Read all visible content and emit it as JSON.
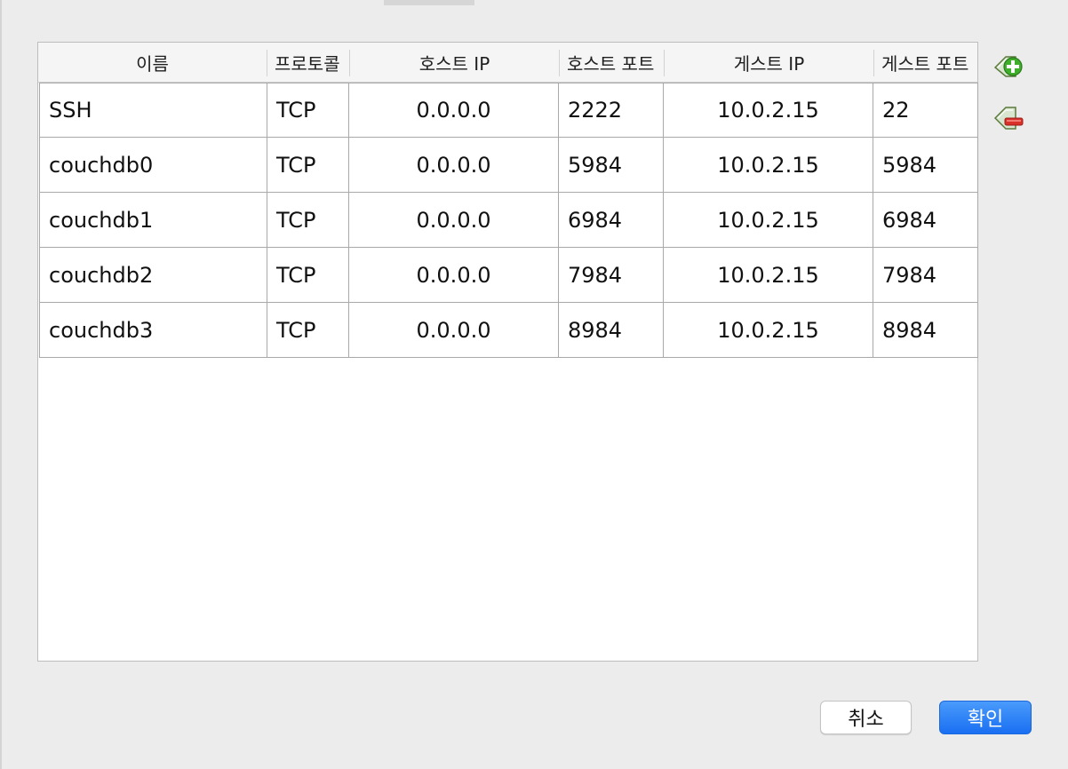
{
  "table": {
    "headers": [
      "이름",
      "프로토콜",
      "호스트 IP",
      "호스트 포트",
      "게스트 IP",
      "게스트 포트"
    ],
    "rows": [
      [
        "SSH",
        "TCP",
        "0.0.0.0",
        "2222",
        "10.0.2.15",
        "22"
      ],
      [
        "couchdb0",
        "TCP",
        "0.0.0.0",
        "5984",
        "10.0.2.15",
        "5984"
      ],
      [
        "couchdb1",
        "TCP",
        "0.0.0.0",
        "6984",
        "10.0.2.15",
        "6984"
      ],
      [
        "couchdb2",
        "TCP",
        "0.0.0.0",
        "7984",
        "10.0.2.15",
        "7984"
      ],
      [
        "couchdb3",
        "TCP",
        "0.0.0.0",
        "8984",
        "10.0.2.15",
        "8984"
      ]
    ]
  },
  "side_actions": {
    "add_icon": "add-rule-icon",
    "remove_icon": "remove-rule-icon"
  },
  "buttons": {
    "cancel_label": "취소",
    "ok_label": "확인"
  },
  "colors": {
    "accent": "#1a6ff2",
    "icon_green": "#3fae2a",
    "icon_red": "#d9302a"
  }
}
